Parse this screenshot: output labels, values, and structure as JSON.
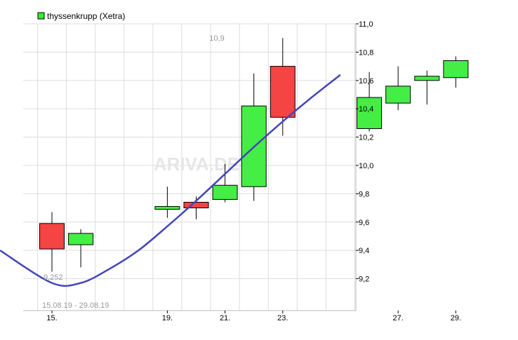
{
  "chart_data": {
    "type": "candlestick",
    "legend": {
      "label": "thyssenkrupp (Xetra)",
      "color": "#33ee33",
      "placement": "top-left"
    },
    "date_range": "15.08.19 - 29.08.19",
    "annotations": {
      "high_label": "10,9",
      "low_label": "9,252"
    },
    "watermark": "ARIVA.DE",
    "x_ticks": [
      "15.",
      "19.",
      "21.",
      "23.",
      "27.",
      "29."
    ],
    "y_ticks": [
      "9,2",
      "9,4",
      "9,6",
      "9,8",
      "10,0",
      "10,2",
      "10,4",
      "10,6",
      "10,8",
      "11,0"
    ],
    "ylim": [
      8.975,
      11.0
    ],
    "grid": true,
    "colors": {
      "up": "#44ee44",
      "down": "#f44444",
      "trend": "#4444bb",
      "grid": "#dddddd"
    },
    "candles": [
      {
        "date": "15.08.19",
        "open": 9.59,
        "high": 9.67,
        "low": 9.25,
        "close": 9.41
      },
      {
        "date": "16.08.19",
        "open": 9.44,
        "high": 9.55,
        "low": 9.28,
        "close": 9.52
      },
      {
        "date": "19.08.19",
        "open": 9.69,
        "high": 9.85,
        "low": 9.63,
        "close": 9.71
      },
      {
        "date": "20.08.19",
        "open": 9.74,
        "high": 9.78,
        "low": 9.62,
        "close": 9.7
      },
      {
        "date": "21.08.19",
        "open": 9.76,
        "high": 10.01,
        "low": 9.74,
        "close": 9.86
      },
      {
        "date": "22.08.19",
        "open": 9.85,
        "high": 10.65,
        "low": 9.75,
        "close": 10.42
      },
      {
        "date": "23.08.19",
        "open": 10.7,
        "high": 10.9,
        "low": 10.21,
        "close": 10.34
      },
      {
        "date": "26.08.19",
        "open": 10.26,
        "high": 10.66,
        "low": 10.24,
        "close": 10.48
      },
      {
        "date": "27.08.19",
        "open": 10.44,
        "high": 10.7,
        "low": 10.39,
        "close": 10.56
      },
      {
        "date": "28.08.19",
        "open": 10.6,
        "high": 10.67,
        "low": 10.43,
        "close": 10.63
      },
      {
        "date": "29.08.19",
        "open": 10.62,
        "high": 10.77,
        "low": 10.55,
        "close": 10.74
      }
    ],
    "trend_line": [
      {
        "day": 0,
        "value": 9.4
      },
      {
        "day": 1,
        "value": 9.17
      },
      {
        "day": 2,
        "value": 9.17
      },
      {
        "day": 3,
        "value": 9.27
      },
      {
        "day": 4,
        "value": 9.4
      },
      {
        "day": 5,
        "value": 9.57
      },
      {
        "day": 6,
        "value": 9.75
      },
      {
        "day": 7,
        "value": 9.94
      },
      {
        "day": 8,
        "value": 10.13
      },
      {
        "day": 9,
        "value": 10.31
      },
      {
        "day": 10,
        "value": 10.48
      },
      {
        "day": 11,
        "value": 10.64
      }
    ]
  }
}
